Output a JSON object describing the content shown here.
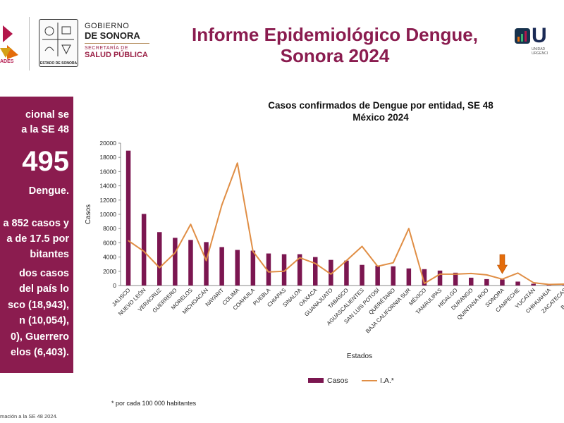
{
  "header": {
    "left_logo_label": "ADES",
    "gobierno_line1": "GOBIERNO",
    "gobierno_line2": "DE SONORA",
    "secretaria_line1": "SECRETARÍA DE",
    "secretaria_line2": "SALUD PÚBLICA",
    "shield_caption": "ESTADO DE SONORA",
    "title_line1": "Informe Epidemiológico Dengue,",
    "title_line2": "Sonora 2024",
    "right_logo_text": "U",
    "right_logo_sub": "UNIDAD\nURGENCI"
  },
  "panel": {
    "line1": "cional se",
    "line2": "a la SE 48",
    "big_number": "495",
    "line3": "Dengue.",
    "line4": "a 852 casos y",
    "line5": "a de 17.5 por",
    "line6": "bitantes",
    "line7": "dos casos",
    "line8": "del país lo",
    "line9": "sco (18,943),",
    "line10": "n (10,054),",
    "line11": "0), Guerrero",
    "line12": "elos (6,403)."
  },
  "chart_data": {
    "type": "bar",
    "title": "Casos confirmados de Dengue por entidad, SE 48",
    "subtitle": "México 2024",
    "xlabel": "Estados",
    "ylabel": "Casos",
    "ylim": [
      0,
      20000
    ],
    "yticks": [
      0,
      2000,
      4000,
      6000,
      8000,
      10000,
      12000,
      14000,
      16000,
      18000,
      20000
    ],
    "categories": [
      "JALISCO",
      "NUEVO LEÓN",
      "VERACRUZ",
      "GUERRERO",
      "MORELOS",
      "MICHOACÁN",
      "NAYARIT",
      "COLIMA",
      "COAHUILA",
      "PUEBLA",
      "CHIAPAS",
      "SINALOA",
      "OAXACA",
      "GUANAJUATO",
      "TABASCO",
      "AGUASCALIENTES",
      "SAN LUIS POTOSÍ",
      "QUERÉTARO",
      "BAJA CALIFORNIA SUR",
      "MÉXICO",
      "TAMAULIPAS",
      "HIDALGO",
      "DURANGO",
      "QUINTANA ROO",
      "SONORA",
      "CAMPECHE",
      "YUCATÁN",
      "CHIHUAHUA",
      "ZACATECAS",
      "BAJA CALI"
    ],
    "series": [
      {
        "name": "Casos",
        "kind": "bar",
        "color": "#7b1650",
        "values": [
          18943,
          10054,
          7500,
          6700,
          6403,
          6100,
          5400,
          5000,
          4900,
          4500,
          4400,
          4400,
          4000,
          3600,
          3500,
          2900,
          2800,
          2700,
          2400,
          2300,
          2100,
          1800,
          1100,
          900,
          852,
          550,
          250,
          120,
          80,
          50
        ]
      },
      {
        "name": "I.A.*",
        "kind": "line",
        "color": "#e08e45",
        "values": [
          6300,
          4800,
          2500,
          4600,
          8600,
          3500,
          11300,
          17200,
          4800,
          1900,
          2000,
          3900,
          3100,
          1600,
          3500,
          5500,
          2700,
          3200,
          8000,
          300,
          1600,
          1600,
          1700,
          1500,
          900,
          1750,
          400,
          150,
          200,
          250
        ]
      }
    ],
    "annotation": {
      "type": "arrow",
      "category": "SONORA",
      "color": "#e46c0a"
    },
    "legend_placement": "bottom",
    "grid": false,
    "footnote": "* por cada 100 000 habitantes"
  },
  "bottom_note": "mación a la SE 48 2024."
}
